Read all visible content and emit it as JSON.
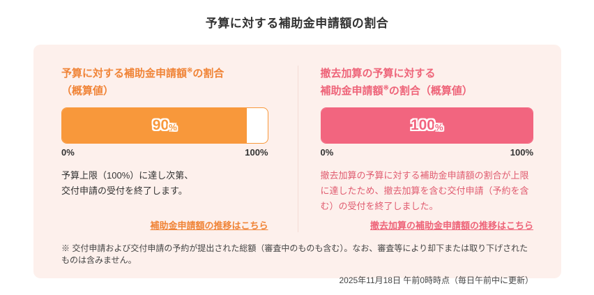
{
  "page": {
    "title": "予算に対する補助金申請額の割合",
    "background_color": "#FFFFFF",
    "card_background_color": "#FDF0EC"
  },
  "panels": [
    {
      "heading": {
        "line1_pre": "予算に対する補助金申請額",
        "line1_sup": "※",
        "line1_post": "の割合",
        "line2_pre": "（概算値）",
        "line2_sup": "",
        "line2_post": ""
      },
      "bar": {
        "value_label": "90",
        "unit": "%",
        "fill_percent": 90,
        "scale_min": "0%",
        "scale_max": "100%",
        "fill_color": "#F8983B",
        "track_color": "#FFFFFF"
      },
      "description_line1": "予算上限（100%）に達し次第、",
      "description_line2": "交付申請の受付を終了します。",
      "link_label": "補助金申請額の推移はこちら",
      "accent_color": "#F08437"
    },
    {
      "heading": {
        "line1_pre": "撤去加算の予算に対する",
        "line1_sup": "",
        "line1_post": "",
        "line2_pre": "補助金申請額",
        "line2_sup": "※",
        "line2_post": "の割合（概算値）"
      },
      "bar": {
        "value_label": "100",
        "unit": "%",
        "fill_percent": 100,
        "scale_min": "0%",
        "scale_max": "100%",
        "fill_color": "#F2657F",
        "track_color": "#F2657F"
      },
      "description_line1": "撤去加算の予算に対する補助金申請額の割合が上限に達したため、撤去加算を含む交付申請（予約を含む）の受付を終了しました。",
      "description_line2": "",
      "link_label": "撤去加算の補助金申請額の推移はこちら",
      "accent_color": "#EE6479"
    }
  ],
  "footer": {
    "footnote": "※ 交付申請および交付申請の予約が提出された総額（審査中のものも含む）。なお、審査等により却下または取り下げされたものは含みません。",
    "timestamp": "2025年11月18日 午前0時時点（毎日午前中に更新）"
  }
}
